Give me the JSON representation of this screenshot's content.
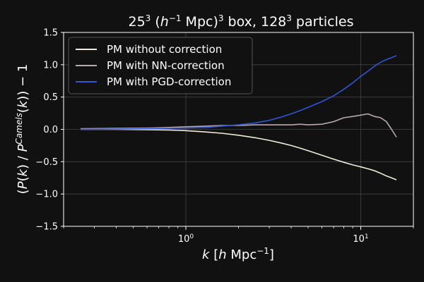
{
  "chart_data": {
    "type": "line",
    "title": {
      "parts": [
        "25",
        "3",
        " (",
        "h",
        "−1",
        " Mpc)",
        "3",
        " box, 128",
        "3",
        " particles"
      ]
    },
    "xlabel": {
      "parts": [
        "k",
        " [",
        "h",
        " Mpc",
        "−1",
        "]"
      ]
    },
    "ylabel": {
      "parts": [
        "(",
        "P",
        "(",
        "k",
        ") / ",
        "P",
        "Camels",
        "(",
        "k",
        ")) − 1"
      ]
    },
    "xscale": "log",
    "xlim": [
      0.2,
      20
    ],
    "ylim": [
      -1.5,
      1.5
    ],
    "yticks": [
      {
        "v": 1.5,
        "label": "1.5"
      },
      {
        "v": 1.0,
        "label": "1.0"
      },
      {
        "v": 0.5,
        "label": "0.5"
      },
      {
        "v": 0.0,
        "label": "0.0"
      },
      {
        "v": -0.5,
        "label": "−0.5"
      },
      {
        "v": -1.0,
        "label": "−1.0"
      },
      {
        "v": -1.5,
        "label": "−1.5"
      }
    ],
    "xticks": [
      {
        "v": 1,
        "base": "10",
        "exp": "0"
      },
      {
        "v": 10,
        "base": "10",
        "exp": "1"
      }
    ],
    "grid": true,
    "legend_position": "top-left",
    "series": [
      {
        "name": "PM without correction",
        "color": "#f0ead6",
        "x": [
          0.25,
          0.4,
          0.6,
          0.8,
          1.0,
          1.3,
          1.6,
          2.0,
          2.5,
          3.0,
          3.5,
          4.0,
          4.5,
          5.0,
          6.0,
          7.0,
          8.0,
          9.0,
          10.0,
          11.0,
          12.0,
          13.0,
          14.0,
          15.0,
          16.0
        ],
        "y": [
          0.0,
          0.0,
          -0.005,
          -0.01,
          -0.02,
          -0.04,
          -0.06,
          -0.09,
          -0.13,
          -0.17,
          -0.21,
          -0.25,
          -0.29,
          -0.33,
          -0.4,
          -0.46,
          -0.51,
          -0.55,
          -0.58,
          -0.61,
          -0.64,
          -0.68,
          -0.72,
          -0.75,
          -0.78
        ]
      },
      {
        "name": "PM with NN-correction",
        "color": "#b9a9b5",
        "x": [
          0.25,
          0.4,
          0.6,
          0.8,
          1.0,
          1.3,
          1.6,
          2.0,
          2.5,
          3.0,
          3.5,
          4.0,
          4.5,
          5.0,
          6.0,
          7.0,
          8.0,
          9.0,
          10.0,
          11.0,
          12.0,
          13.0,
          14.0,
          15.0,
          16.0
        ],
        "y": [
          0.01,
          0.015,
          0.02,
          0.03,
          0.04,
          0.05,
          0.06,
          0.06,
          0.07,
          0.07,
          0.07,
          0.07,
          0.08,
          0.07,
          0.08,
          0.12,
          0.18,
          0.2,
          0.22,
          0.24,
          0.2,
          0.18,
          0.12,
          0.0,
          -0.12
        ]
      },
      {
        "name": "PM with PGD-correction",
        "color": "#2f56d4",
        "x": [
          0.25,
          0.4,
          0.6,
          0.8,
          1.0,
          1.3,
          1.6,
          2.0,
          2.5,
          3.0,
          3.5,
          4.0,
          4.5,
          5.0,
          6.0,
          7.0,
          8.0,
          9.0,
          10.0,
          11.0,
          12.0,
          13.0,
          14.0,
          15.0,
          16.0
        ],
        "y": [
          0.0,
          0.005,
          0.01,
          0.015,
          0.02,
          0.03,
          0.05,
          0.07,
          0.1,
          0.14,
          0.19,
          0.24,
          0.29,
          0.34,
          0.43,
          0.52,
          0.62,
          0.72,
          0.82,
          0.9,
          0.98,
          1.04,
          1.08,
          1.11,
          1.14
        ]
      }
    ]
  }
}
